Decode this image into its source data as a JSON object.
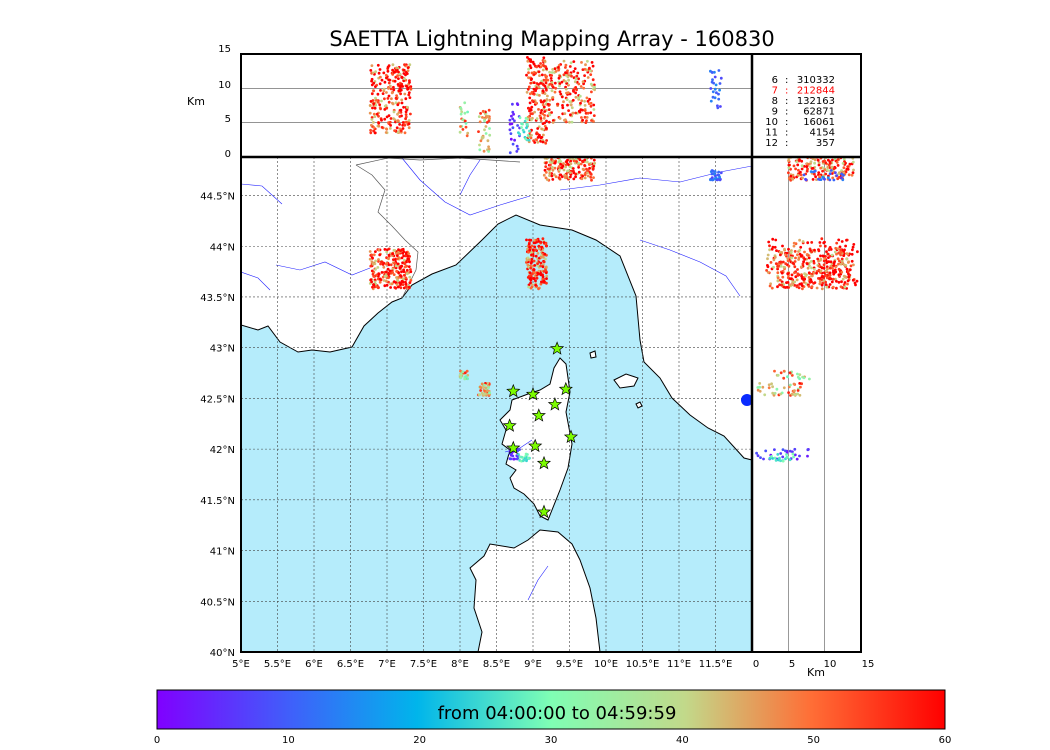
{
  "title": "SAETTA Lightning Mapping Array - 160830",
  "alt_axis": {
    "label": "Km",
    "ticks": [
      "0",
      "5",
      "10",
      "15"
    ]
  },
  "lon_axis": {
    "ticks": [
      "5°E",
      "5.5°E",
      "6°E",
      "6.5°E",
      "7°E",
      "7.5°E",
      "8°E",
      "8.5°E",
      "9°E",
      "9.5°E",
      "10°E",
      "10.5°E",
      "11°E",
      "11.5°E"
    ]
  },
  "lat_axis": {
    "ticks": [
      "40°N",
      "40.5°N",
      "41°N",
      "41.5°N",
      "42°N",
      "42.5°N",
      "43°N",
      "43.5°N",
      "44°N",
      "44.5°N"
    ]
  },
  "side_axis": {
    "label": "Km",
    "ticks": [
      "0",
      "5",
      "10",
      "15"
    ]
  },
  "stats": {
    "rows": [
      {
        "n": "6",
        "count": "310332",
        "highlight": false
      },
      {
        "n": "7",
        "count": "212844",
        "highlight": true
      },
      {
        "n": "8",
        "count": "132163",
        "highlight": false
      },
      {
        "n": "9",
        "count": "62871",
        "highlight": false
      },
      {
        "n": "10",
        "count": "16061",
        "highlight": false
      },
      {
        "n": "11",
        "count": "4154",
        "highlight": false
      },
      {
        "n": "12",
        "count": "357",
        "highlight": false
      }
    ],
    "highlight_color": "#ff0000"
  },
  "colorbar": {
    "label": "from 04:00:00 to 04:59:59",
    "ticks": [
      "0",
      "10",
      "20",
      "30",
      "40",
      "50",
      "60"
    ],
    "min": 0,
    "max": 60
  },
  "colors": {
    "sea": "#b5ecfb",
    "land": "#ffffff",
    "rivers": "#2020ff",
    "borders": "#000000",
    "grid": "#555555",
    "station_fill": "#7cfc00"
  },
  "stations": [
    {
      "lon": 9.33,
      "lat": 42.99
    },
    {
      "lon": 8.73,
      "lat": 42.57
    },
    {
      "lon": 9.0,
      "lat": 42.54
    },
    {
      "lon": 9.45,
      "lat": 42.59
    },
    {
      "lon": 9.3,
      "lat": 42.44
    },
    {
      "lon": 9.08,
      "lat": 42.33
    },
    {
      "lon": 8.68,
      "lat": 42.23
    },
    {
      "lon": 9.52,
      "lat": 42.12
    },
    {
      "lon": 8.73,
      "lat": 42.01
    },
    {
      "lon": 9.03,
      "lat": 42.03
    },
    {
      "lon": 9.15,
      "lat": 41.86
    },
    {
      "lon": 9.15,
      "lat": 41.38
    }
  ],
  "clusters": [
    {
      "lon": 7.05,
      "lat": 43.78,
      "w": 0.28,
      "h": 0.2,
      "t": 58,
      "zmin": 3.5,
      "zmax": 13.5,
      "n": 260
    },
    {
      "lon": 9.05,
      "lat": 43.83,
      "w": 0.14,
      "h": 0.25,
      "t": 57,
      "zmin": 2,
      "zmax": 14.5,
      "n": 170
    },
    {
      "lon": 9.5,
      "lat": 44.8,
      "w": 0.35,
      "h": 0.15,
      "t": 55,
      "zmin": 5,
      "zmax": 14,
      "n": 220
    },
    {
      "lon": 8.33,
      "lat": 42.59,
      "w": 0.08,
      "h": 0.06,
      "t": 49,
      "zmin": 0.5,
      "zmax": 7,
      "n": 40
    },
    {
      "lon": 8.05,
      "lat": 42.73,
      "w": 0.06,
      "h": 0.04,
      "t": 45,
      "zmin": 3,
      "zmax": 8,
      "n": 20
    },
    {
      "lon": 8.75,
      "lat": 41.95,
      "w": 0.07,
      "h": 0.05,
      "t": 6,
      "zmin": 0.5,
      "zmax": 8,
      "n": 25
    },
    {
      "lon": 8.88,
      "lat": 41.92,
      "w": 0.08,
      "h": 0.04,
      "t": 28,
      "zmin": 2,
      "zmax": 6,
      "n": 20
    },
    {
      "lon": 11.5,
      "lat": 44.7,
      "w": 0.08,
      "h": 0.05,
      "t": 12,
      "zmin": 7,
      "zmax": 13,
      "n": 25
    }
  ]
}
